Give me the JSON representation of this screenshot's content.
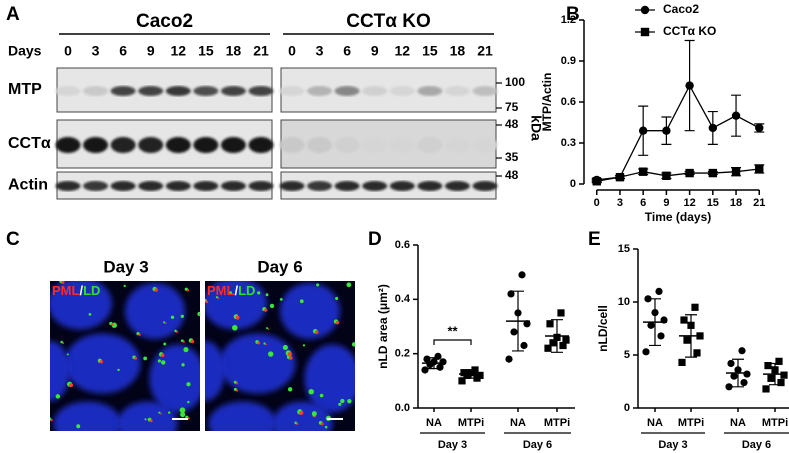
{
  "panel_labels": [
    "A",
    "B",
    "C",
    "D",
    "E"
  ],
  "blot": {
    "groups": [
      "Caco2",
      "CCTα KO"
    ],
    "days_label": "Days",
    "lanes": [
      "0",
      "3",
      "6",
      "9",
      "12",
      "15",
      "18",
      "21"
    ],
    "rows": [
      "MTP",
      "CCTα",
      "Actin"
    ],
    "markers": [
      "100",
      "75",
      "48",
      "35",
      "48"
    ],
    "unit": "kDa"
  },
  "images": [
    {
      "title": "Day 3"
    },
    {
      "title": "Day 6"
    }
  ],
  "stain": [
    "PML",
    "/",
    "LD"
  ],
  "chart_data": [
    {
      "type": "line",
      "xlabel": "Time (days)",
      "ylabel": "MTP/Actin",
      "x": [
        0,
        3,
        6,
        9,
        12,
        15,
        18,
        21
      ],
      "xlim": [
        -1,
        22
      ],
      "xticks": [
        0,
        3,
        6,
        9,
        12,
        15,
        18,
        21
      ],
      "ylim": [
        0,
        1.2
      ],
      "yticks": [
        0,
        0.3,
        0.6,
        0.9,
        1.2
      ],
      "legend": "top-left",
      "series": [
        {
          "name": "Caco2",
          "marker": "circle",
          "color": "#000000",
          "values": [
            0.03,
            0.05,
            0.39,
            0.39,
            0.72,
            0.41,
            0.5,
            0.41
          ],
          "errors": [
            0.01,
            0.01,
            0.18,
            0.1,
            0.33,
            0.12,
            0.15,
            0.03
          ]
        },
        {
          "name": "CCTα KO",
          "marker": "square",
          "color": "#000000",
          "values": [
            0.02,
            0.05,
            0.09,
            0.06,
            0.08,
            0.08,
            0.09,
            0.11
          ],
          "errors": [
            0.01,
            0.01,
            0.02,
            0.02,
            0.01,
            0.01,
            0.03,
            0.03
          ]
        }
      ]
    },
    {
      "type": "strip",
      "ylabel": "nLD area (μm²)",
      "ylim": [
        0,
        0.6
      ],
      "yticks": [
        {
          "value": 0,
          "label": "0.0"
        },
        0.2,
        0.4,
        0.6
      ],
      "categories": [
        "NA",
        "MTPi",
        "NA",
        "MTPi"
      ],
      "group_labels": [
        "Day 3",
        "Day 6"
      ],
      "markers": [
        "circle",
        "square",
        "circle",
        "square"
      ],
      "points": [
        [
          0.14,
          0.15,
          0.16,
          0.17,
          0.17,
          0.18,
          0.19
        ],
        [
          0.1,
          0.11,
          0.12,
          0.12,
          0.13,
          0.13,
          0.14
        ],
        [
          0.18,
          0.23,
          0.28,
          0.31,
          0.35,
          0.42,
          0.49
        ],
        [
          0.22,
          0.23,
          0.24,
          0.25,
          0.26,
          0.31,
          0.35
        ]
      ],
      "means": [
        0.165,
        0.125,
        0.32,
        0.265
      ],
      "sd": [
        0.02,
        0.015,
        0.11,
        0.06
      ],
      "annotation": "**"
    },
    {
      "type": "strip",
      "ylabel": "nLD/cell",
      "ylim": [
        0,
        15
      ],
      "yticks": [
        0,
        5,
        10,
        15
      ],
      "categories": [
        "NA",
        "MTPi",
        "NA",
        "MTPi"
      ],
      "group_labels": [
        "Day 3",
        "Day 6"
      ],
      "markers": [
        "circle",
        "square",
        "circle",
        "square"
      ],
      "points": [
        [
          5.3,
          6.8,
          7.8,
          8.3,
          9.0,
          10.3,
          11.0
        ],
        [
          4.3,
          5.2,
          6.4,
          6.8,
          7.8,
          8.3,
          9.5
        ],
        [
          2.0,
          2.4,
          3.0,
          3.2,
          3.6,
          4.2,
          5.4
        ],
        [
          1.8,
          2.4,
          2.8,
          3.1,
          3.6,
          4.0,
          4.4
        ]
      ],
      "means": [
        8.1,
        6.8,
        3.3,
        3.2
      ],
      "sd": [
        2.2,
        2.0,
        1.3,
        1.0
      ]
    }
  ]
}
